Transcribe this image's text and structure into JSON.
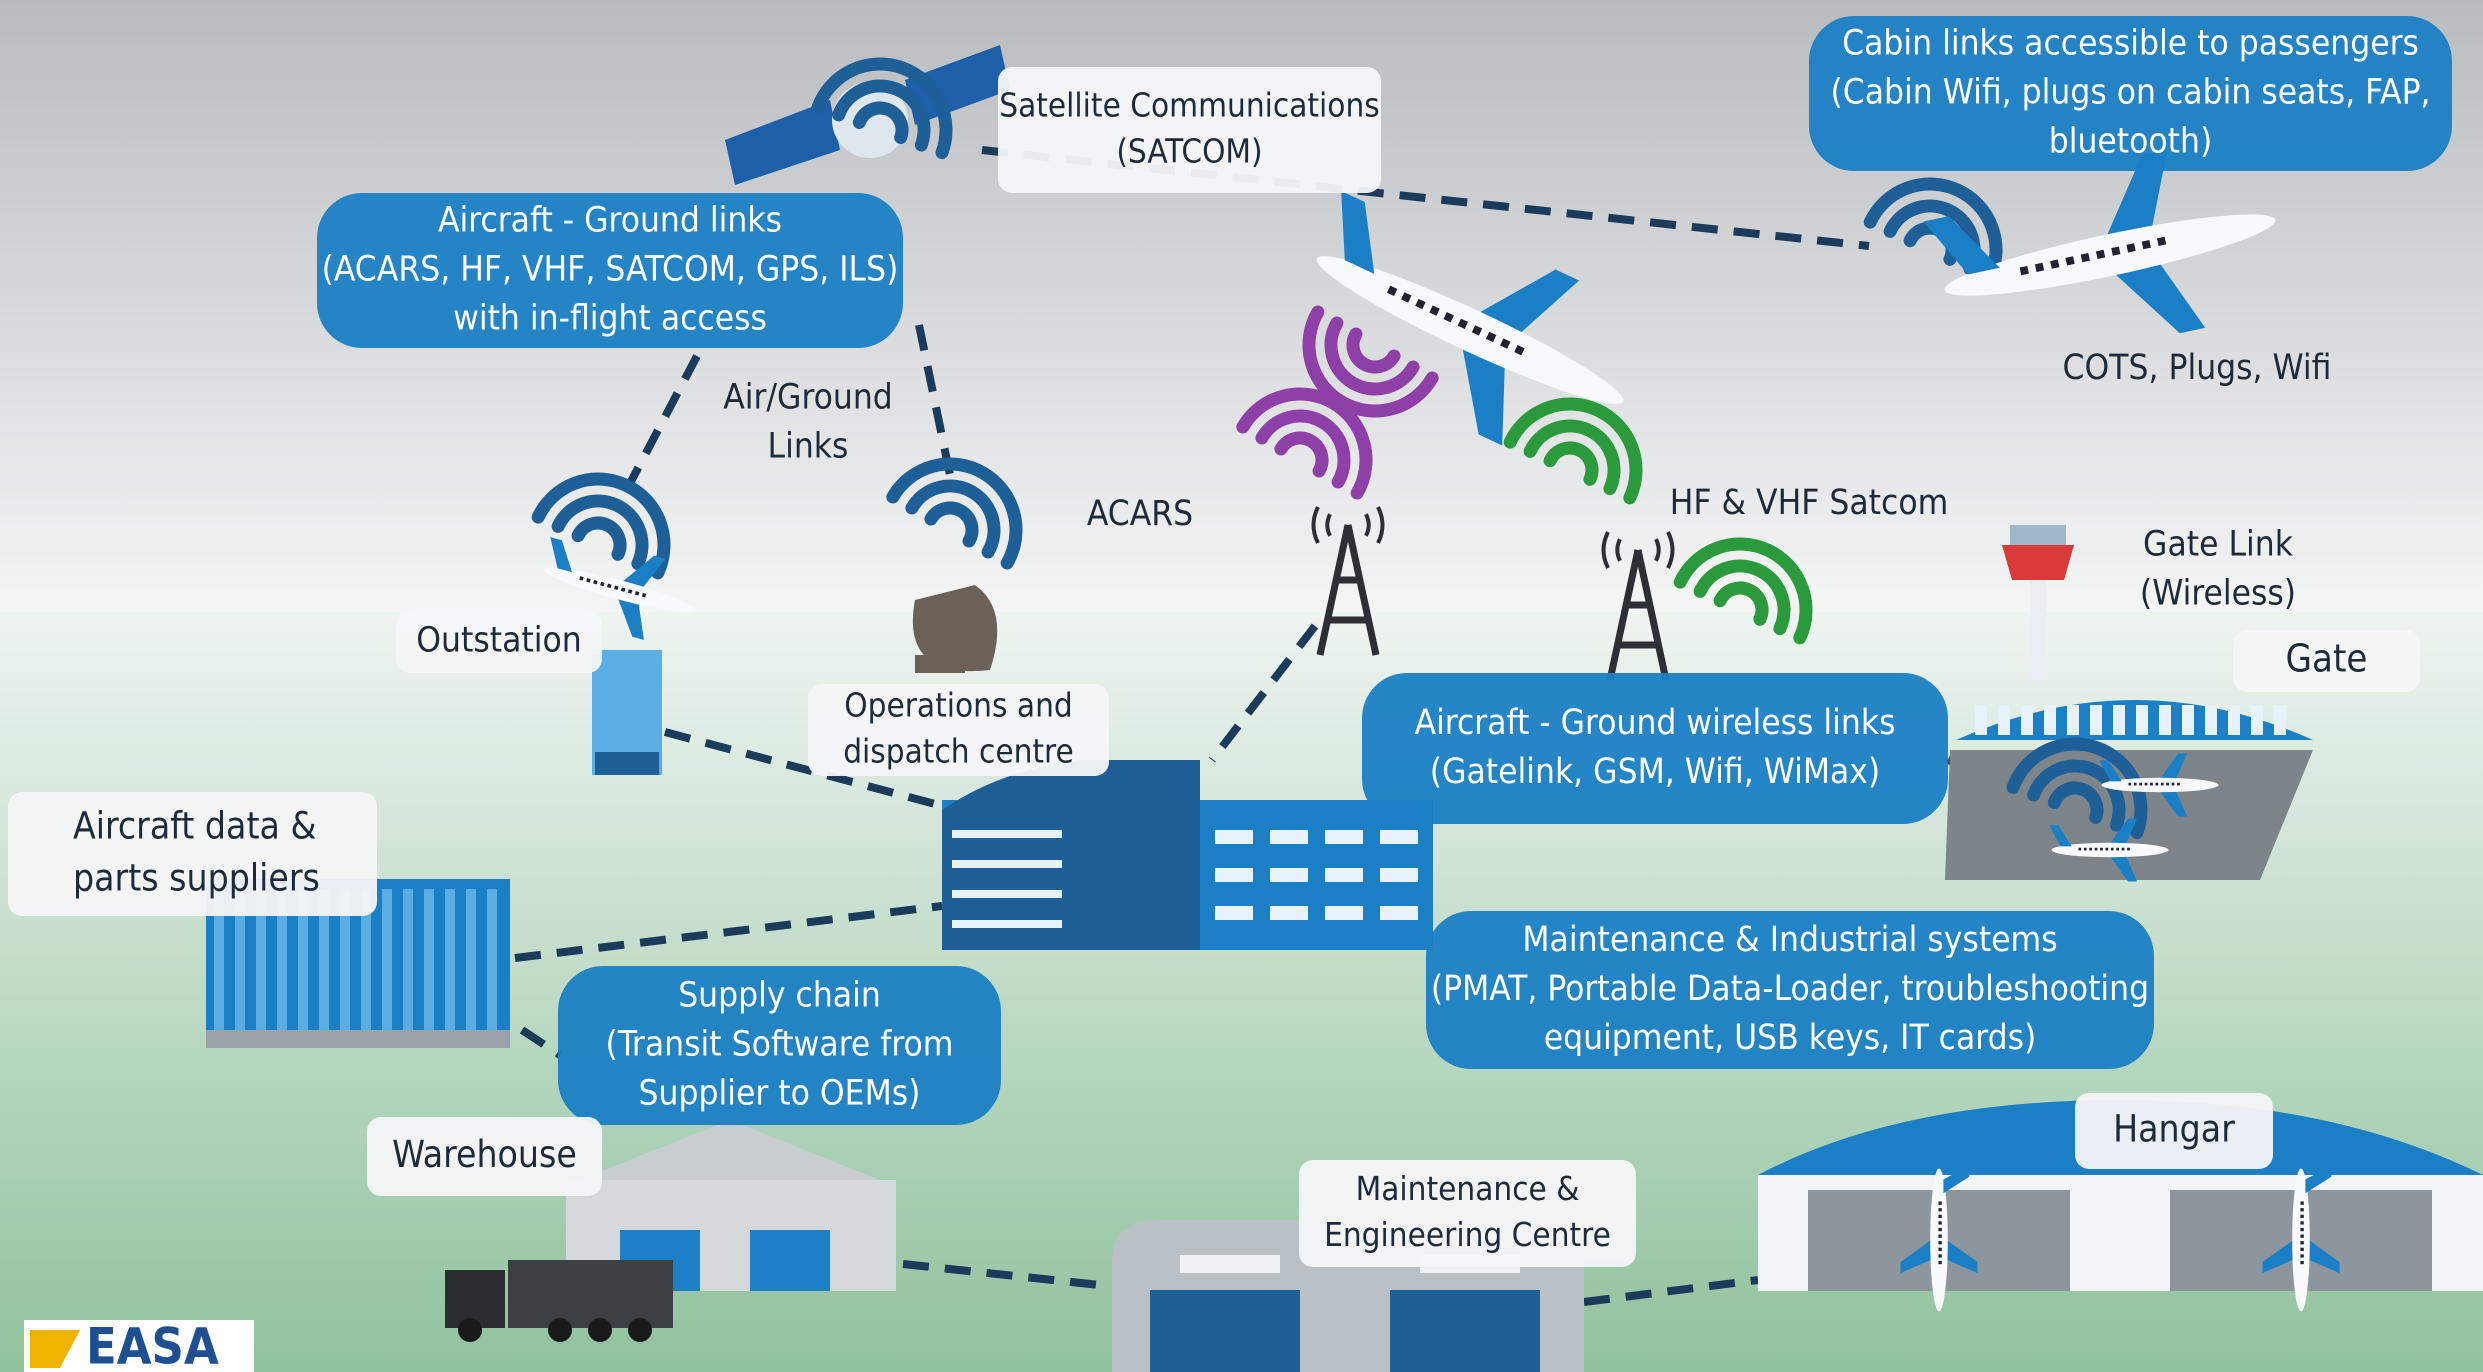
{
  "labels": {
    "satcom": [
      "Satellite Communications",
      "(SATCOM)"
    ],
    "cabin": [
      "Cabin links accessible to passengers",
      "(Cabin Wifi, plugs on cabin seats, FAP,",
      "bluetooth)"
    ],
    "aircraft_ground": [
      "Aircraft - Ground links",
      "(ACARS, HF, VHF, SATCOM, GPS, ILS)",
      "with in-flight access"
    ],
    "air_ground": [
      "Air/Ground",
      "Links"
    ],
    "cots": [
      "COTS, Plugs, Wifi"
    ],
    "acars": [
      "ACARS"
    ],
    "hf_vhf": [
      "HF & VHF Satcom"
    ],
    "gate_link": [
      "Gate Link",
      "(Wireless)"
    ],
    "outstation": [
      "Outstation"
    ],
    "gate": [
      "Gate"
    ],
    "ops": [
      "Operations and",
      "dispatch centre"
    ],
    "wireless": [
      "Aircraft - Ground wireless links",
      "(Gatelink, GSM, Wifi, WiMax)"
    ],
    "suppliers": [
      "Aircraft data &",
      "parts suppliers"
    ],
    "maintenance_sys": [
      "Maintenance & Industrial systems",
      "(PMAT, Portable Data-Loader, troubleshooting",
      "equipment, USB keys, IT cards)"
    ],
    "supply_chain": [
      "Supply chain",
      "(Transit Software from",
      "Supplier to OEMs)"
    ],
    "warehouse": [
      "Warehouse"
    ],
    "hangar": [
      "Hangar"
    ],
    "mec": [
      "Maintenance &",
      "Engineering Centre"
    ],
    "logo": [
      "EASA"
    ]
  }
}
